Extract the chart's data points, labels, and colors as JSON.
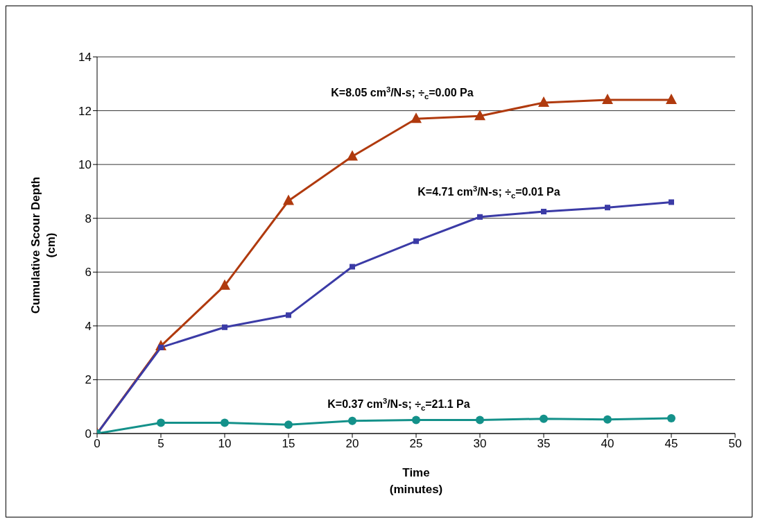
{
  "chart_data": {
    "type": "line",
    "xlabel": "Time\n(minutes)",
    "ylabel": "Cumulative Scour Depth\n(cm)",
    "x": [
      0,
      5,
      10,
      15,
      20,
      25,
      30,
      35,
      40,
      45
    ],
    "series": [
      {
        "name": "K=8.05 cm$^{3}$/N-s; ÷$_{c}$=0.00 Pa",
        "color": "#b03a0e",
        "marker": "triangle",
        "values": [
          0,
          3.25,
          5.5,
          8.65,
          10.3,
          11.7,
          11.8,
          12.3,
          12.4,
          12.4
        ]
      },
      {
        "name": "K=4.71 cm$^{3}$/N-s; ÷$_{c}$=0.01 Pa",
        "color": "#3b3ba6",
        "marker": "square",
        "values": [
          0,
          3.2,
          3.95,
          4.4,
          6.2,
          7.15,
          8.05,
          8.25,
          8.4,
          8.6
        ]
      },
      {
        "name": "K=0.37 cm$^{3}$/N-s; ÷$_{c}$=21.1 Pa",
        "color": "#14918a",
        "marker": "circle",
        "values": [
          0,
          0.4,
          0.4,
          0.33,
          0.47,
          0.5,
          0.5,
          0.55,
          0.52,
          0.57
        ]
      }
    ],
    "xlim": [
      0,
      50
    ],
    "xticks": [
      0,
      5,
      10,
      15,
      20,
      25,
      30,
      35,
      40,
      45,
      50
    ],
    "ylim": [
      0,
      14
    ],
    "yticks": [
      0,
      2,
      4,
      6,
      8,
      10,
      12,
      14
    ],
    "grid": "y",
    "line_style": "solid"
  }
}
